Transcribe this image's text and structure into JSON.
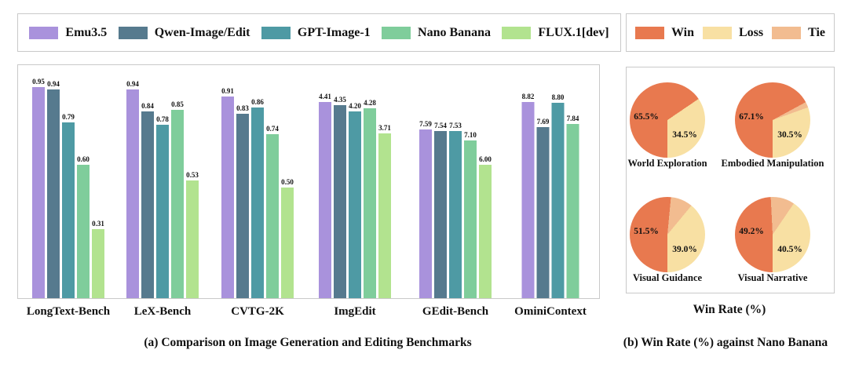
{
  "figure": {
    "caption_a": "(a) Comparison on Image Generation and Editing Benchmarks",
    "caption_b": "(b) Win Rate (%) against Nano Banana"
  },
  "chart_data": [
    {
      "type": "bar",
      "title": "",
      "legend_position": "top",
      "grid": false,
      "categories": [
        "LongText-Bench",
        "LeX-Bench",
        "CVTG-2K",
        "ImgEdit",
        "GEdit-Bench",
        "OminiContext"
      ],
      "group_ylim": [
        1,
        1,
        1,
        5,
        10,
        10
      ],
      "series": [
        {
          "name": "Emu3.5",
          "color": "#a992dc",
          "values": [
            0.95,
            0.94,
            0.91,
            4.41,
            7.59,
            8.82
          ]
        },
        {
          "name": "Qwen-Image/Edit",
          "color": "#567a8e",
          "values": [
            0.94,
            0.84,
            0.83,
            4.35,
            7.54,
            7.69
          ]
        },
        {
          "name": "GPT-Image-1",
          "color": "#4e9aa4",
          "values": [
            0.79,
            0.78,
            0.86,
            4.2,
            7.53,
            8.8
          ]
        },
        {
          "name": "Nano Banana",
          "color": "#7fcd9b",
          "values": [
            0.6,
            0.85,
            0.74,
            4.28,
            7.1,
            7.84
          ]
        },
        {
          "name": "FLUX.1[dev]",
          "color": "#b2e38f",
          "values": [
            0.31,
            0.53,
            0.5,
            3.71,
            6.0,
            null
          ]
        }
      ]
    },
    {
      "type": "pie",
      "xlabel": "Win Rate (%)",
      "start_angle_deg": 180,
      "segment_order": [
        "win",
        "tie",
        "loss"
      ],
      "legend": [
        {
          "name": "Win",
          "color": "#e8794f"
        },
        {
          "name": "Loss",
          "color": "#f8e0a3"
        },
        {
          "name": "Tie",
          "color": "#f2bc90"
        }
      ],
      "pies": [
        {
          "label": "World Exploration",
          "win": 65.5,
          "loss": 34.5,
          "tie": 0.0,
          "win_label": "65.5%",
          "loss_label": "34.5%"
        },
        {
          "label": "Embodied Manipulation",
          "win": 67.1,
          "loss": 30.5,
          "tie": 2.4,
          "win_label": "67.1%",
          "loss_label": "30.5%"
        },
        {
          "label": "Visual Guidance",
          "win": 51.5,
          "loss": 39.0,
          "tie": 9.5,
          "win_label": "51.5%",
          "loss_label": "39.0%"
        },
        {
          "label": "Visual Narrative",
          "win": 49.2,
          "loss": 40.5,
          "tie": 10.3,
          "win_label": "49.2%",
          "loss_label": "40.5%"
        }
      ]
    }
  ]
}
